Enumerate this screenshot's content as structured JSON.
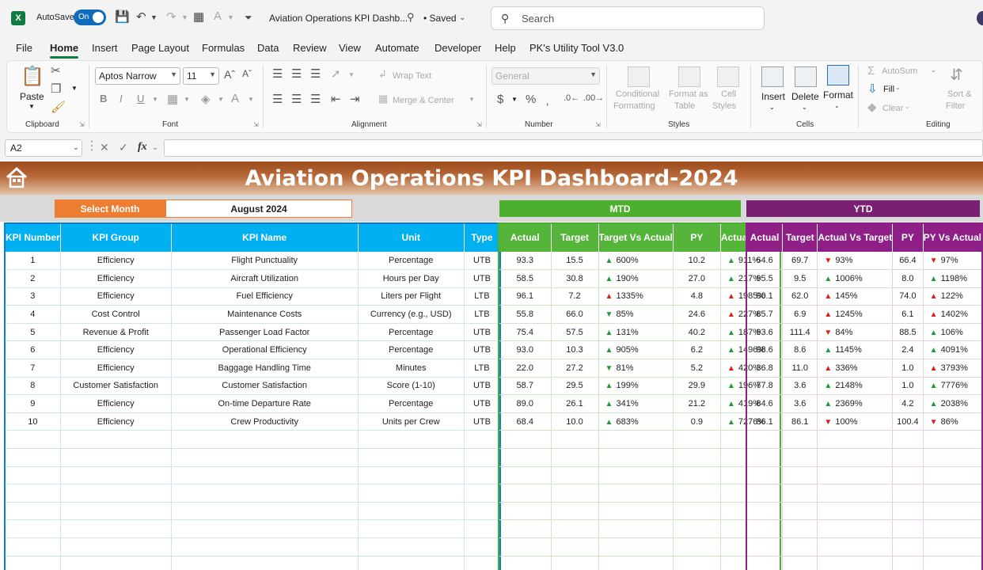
{
  "titlebar": {
    "autosave_label": "AutoSave",
    "toggle_label": "On",
    "doc_title": "Aviation Operations KPI Dashb...",
    "saved_label": "• Saved",
    "search_placeholder": "Search"
  },
  "menu": [
    "File",
    "Home",
    "Insert",
    "Page Layout",
    "Formulas",
    "Data",
    "Review",
    "View",
    "Automate",
    "Developer",
    "Help",
    "PK's Utility Tool V3.0"
  ],
  "ribbon": {
    "paste": "Paste",
    "font_name": "Aptos Narrow",
    "font_size": "11",
    "wrap_text": "Wrap Text",
    "merge_center": "Merge & Center",
    "number_format": "General",
    "cond_format_1": "Conditional",
    "cond_format_2": "Formatting",
    "format_table_1": "Format as",
    "format_table_2": "Table",
    "cell_styles_1": "Cell",
    "cell_styles_2": "Styles",
    "insert": "Insert",
    "delete": "Delete",
    "format": "Format",
    "autosum": "AutoSum",
    "fill": "Fill",
    "clear": "Clear",
    "sort_1": "Sort &",
    "sort_2": "Filter",
    "groups": {
      "clipboard": "Clipboard",
      "font": "Font",
      "alignment": "Alignment",
      "number": "Number",
      "styles": "Styles",
      "cells": "Cells",
      "editing": "Editing"
    }
  },
  "formula_bar": {
    "name_box": "A2",
    "fx": "fx"
  },
  "sheet": {
    "title": "Aviation Operations KPI Dashboard-2024",
    "select_month_label": "Select Month",
    "month_value": "August 2024",
    "mtd_label": "MTD",
    "ytd_label": "YTD",
    "kpi_headers": [
      "KPI Number",
      "KPI Group",
      "KPI Name",
      "Unit",
      "Type"
    ],
    "mtd_headers": [
      "Actual",
      "Target",
      "Target Vs Actual",
      "PY",
      "Actual Vs PY"
    ],
    "ytd_headers": [
      "Actual",
      "Target",
      "Actual Vs Target",
      "PY",
      "PY Vs Actual"
    ],
    "rows": [
      {
        "num": "1",
        "group": "Efficiency",
        "name": "Flight Punctuality",
        "unit": "Percentage",
        "type": "UTB",
        "mtd": {
          "actual": "93.3",
          "target": "15.5",
          "tva": "600%",
          "tva_dir": "up",
          "py": "10.2",
          "avp": "911%",
          "avp_dir": "up"
        },
        "ytd": {
          "actual": "64.6",
          "target": "69.7",
          "avt": "93%",
          "avt_dir": "down",
          "py": "66.4",
          "pva": "97%",
          "pva_dir": "down"
        }
      },
      {
        "num": "2",
        "group": "Efficiency",
        "name": "Aircraft Utilization",
        "unit": "Hours per Day",
        "type": "UTB",
        "mtd": {
          "actual": "58.5",
          "target": "30.8",
          "tva": "190%",
          "tva_dir": "up",
          "py": "27.0",
          "avp": "217%",
          "avp_dir": "up"
        },
        "ytd": {
          "actual": "95.5",
          "target": "9.5",
          "avt": "1006%",
          "avt_dir": "up",
          "py": "8.0",
          "pva": "1198%",
          "pva_dir": "up"
        }
      },
      {
        "num": "3",
        "group": "Efficiency",
        "name": "Fuel Efficiency",
        "unit": "Liters per Flight",
        "type": "LTB",
        "mtd": {
          "actual": "96.1",
          "target": "7.2",
          "tva": "1335%",
          "tva_dir": "uprd",
          "py": "4.8",
          "avp": "1985%",
          "avp_dir": "uprd"
        },
        "ytd": {
          "actual": "90.1",
          "target": "62.0",
          "avt": "145%",
          "avt_dir": "uprd",
          "py": "74.0",
          "pva": "122%",
          "pva_dir": "uprd"
        }
      },
      {
        "num": "4",
        "group": "Cost Control",
        "name": "Maintenance Costs",
        "unit": "Currency (e.g., USD)",
        "type": "LTB",
        "mtd": {
          "actual": "55.8",
          "target": "66.0",
          "tva": "85%",
          "tva_dir": "downgr",
          "py": "24.6",
          "avp": "227%",
          "avp_dir": "uprd"
        },
        "ytd": {
          "actual": "85.7",
          "target": "6.9",
          "avt": "1245%",
          "avt_dir": "uprd",
          "py": "6.1",
          "pva": "1402%",
          "pva_dir": "uprd"
        }
      },
      {
        "num": "5",
        "group": "Revenue & Profit",
        "name": "Passenger Load Factor",
        "unit": "Percentage",
        "type": "UTB",
        "mtd": {
          "actual": "75.4",
          "target": "57.5",
          "tva": "131%",
          "tva_dir": "up",
          "py": "40.2",
          "avp": "187%",
          "avp_dir": "up"
        },
        "ytd": {
          "actual": "93.6",
          "target": "111.4",
          "avt": "84%",
          "avt_dir": "down",
          "py": "88.5",
          "pva": "106%",
          "pva_dir": "up"
        }
      },
      {
        "num": "6",
        "group": "Efficiency",
        "name": "Operational Efficiency",
        "unit": "Percentage",
        "type": "UTB",
        "mtd": {
          "actual": "93.0",
          "target": "10.3",
          "tva": "905%",
          "tva_dir": "up",
          "py": "6.2",
          "avp": "1496%",
          "avp_dir": "up"
        },
        "ytd": {
          "actual": "98.6",
          "target": "8.6",
          "avt": "1145%",
          "avt_dir": "up",
          "py": "2.4",
          "pva": "4091%",
          "pva_dir": "up"
        }
      },
      {
        "num": "7",
        "group": "Efficiency",
        "name": "Baggage Handling Time",
        "unit": "Minutes",
        "type": "LTB",
        "mtd": {
          "actual": "22.0",
          "target": "27.2",
          "tva": "81%",
          "tva_dir": "downgr",
          "py": "5.2",
          "avp": "420%",
          "avp_dir": "uprd"
        },
        "ytd": {
          "actual": "36.8",
          "target": "11.0",
          "avt": "336%",
          "avt_dir": "uprd",
          "py": "1.0",
          "pva": "3793%",
          "pva_dir": "uprd"
        }
      },
      {
        "num": "8",
        "group": "Customer Satisfaction",
        "name": "Customer Satisfaction",
        "unit": "Score (1-10)",
        "type": "UTB",
        "mtd": {
          "actual": "58.7",
          "target": "29.5",
          "tva": "199%",
          "tva_dir": "up",
          "py": "29.9",
          "avp": "196%",
          "avp_dir": "up"
        },
        "ytd": {
          "actual": "77.8",
          "target": "3.6",
          "avt": "2148%",
          "avt_dir": "up",
          "py": "1.0",
          "pva": "7776%",
          "pva_dir": "up"
        }
      },
      {
        "num": "9",
        "group": "Efficiency",
        "name": "On-time Departure Rate",
        "unit": "Percentage",
        "type": "UTB",
        "mtd": {
          "actual": "89.0",
          "target": "26.1",
          "tva": "341%",
          "tva_dir": "up",
          "py": "21.2",
          "avp": "419%",
          "avp_dir": "up"
        },
        "ytd": {
          "actual": "84.6",
          "target": "3.6",
          "avt": "2369%",
          "avt_dir": "up",
          "py": "4.2",
          "pva": "2038%",
          "pva_dir": "up"
        }
      },
      {
        "num": "10",
        "group": "Efficiency",
        "name": "Crew Productivity",
        "unit": "Units per Crew",
        "type": "UTB",
        "mtd": {
          "actual": "68.4",
          "target": "10.0",
          "tva": "683%",
          "tva_dir": "up",
          "py": "0.9",
          "avp": "7276%",
          "avp_dir": "up"
        },
        "ytd": {
          "actual": "86.1",
          "target": "86.1",
          "avt": "100%",
          "avt_dir": "down",
          "py": "100.4",
          "pva": "86%",
          "pva_dir": "down"
        }
      }
    ]
  }
}
